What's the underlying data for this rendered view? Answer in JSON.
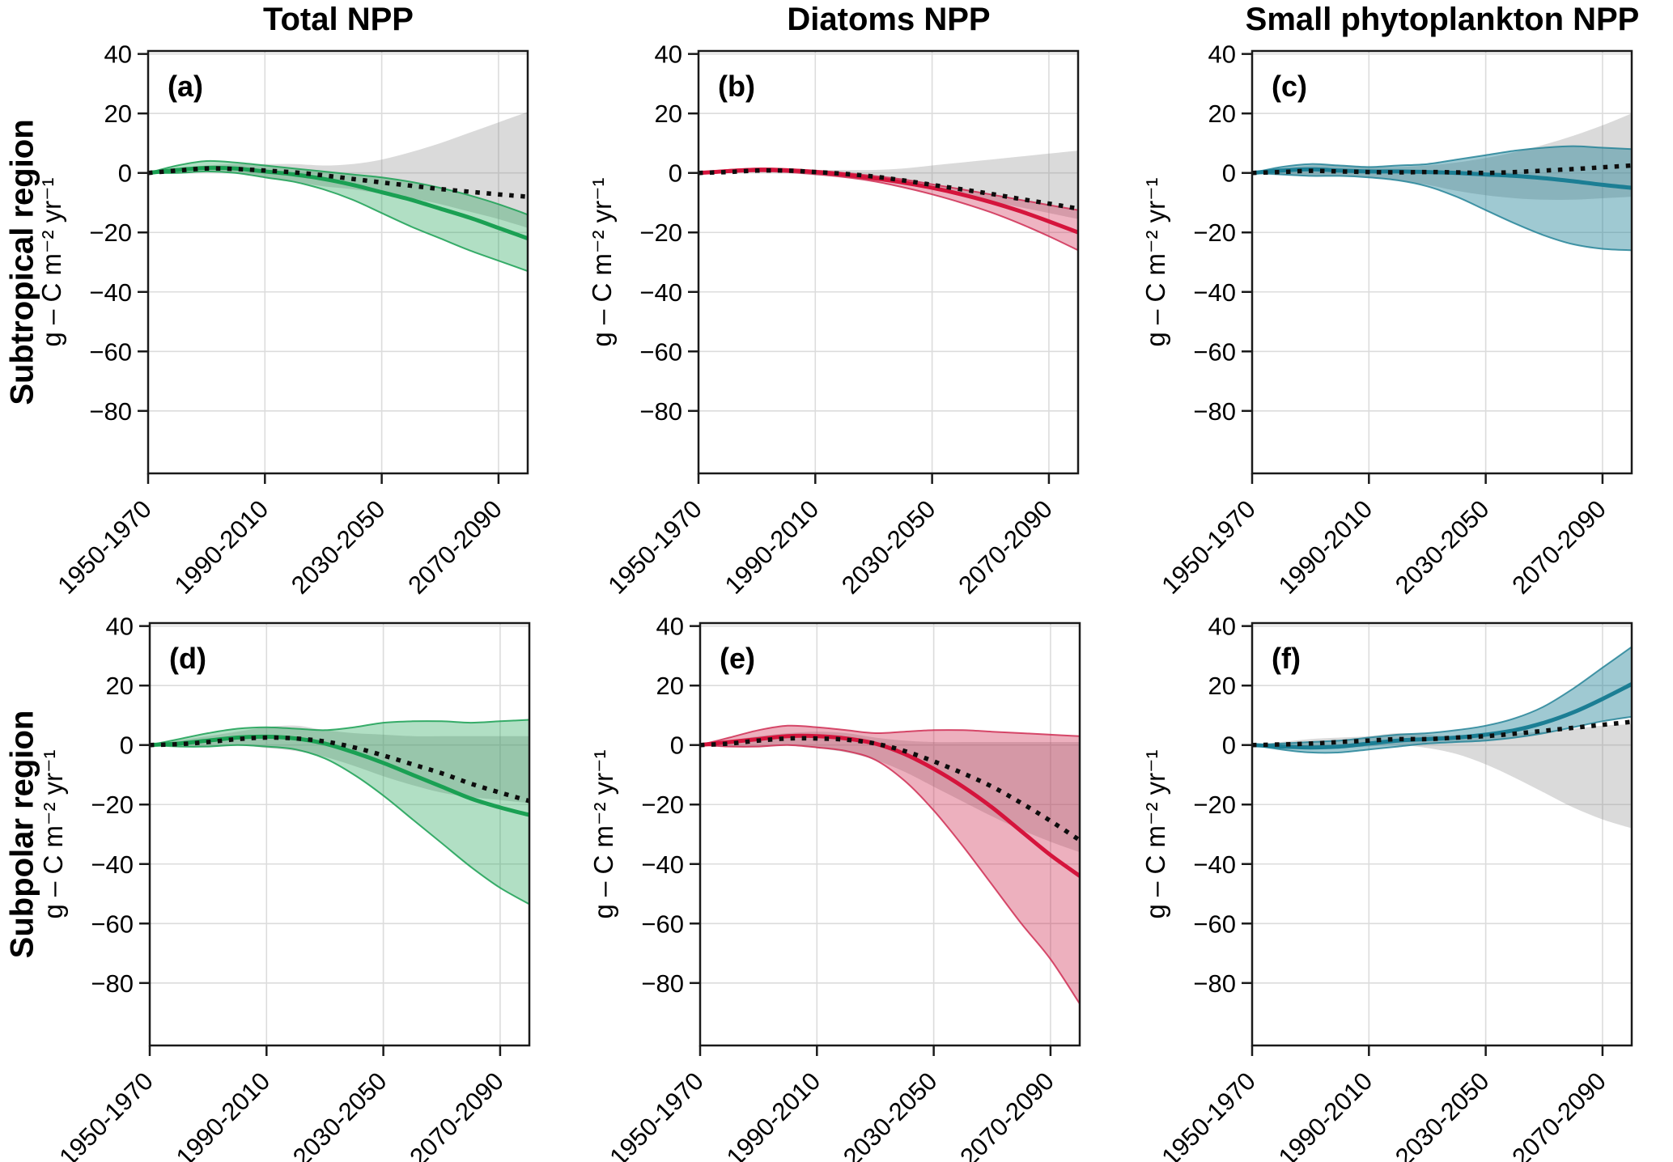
{
  "figure": {
    "column_titles": [
      "Total NPP",
      "Diatoms NPP",
      "Small phytoplankton NPP"
    ],
    "row_labels": [
      "Subtropical region",
      "Subpolar region"
    ]
  },
  "colors": {
    "grid": "#dcdcdc",
    "frame": "#1a1a1a",
    "dotted_line": "#0d0d0d",
    "gray_band_fill": "rgba(140,140,140,0.32)",
    "green": "#1aa053",
    "red": "#d5143c",
    "teal": "#1b7e94"
  },
  "chart_data": {
    "type": "line",
    "x": [
      1960,
      1970,
      1980,
      1990,
      2000,
      2010,
      2020,
      2030,
      2040,
      2050,
      2060,
      2070,
      2080,
      2090
    ],
    "axes": {
      "ylabel": "g – C m⁻² yr⁻¹",
      "ytick_values": [
        40,
        20,
        0,
        -20,
        -40,
        -60,
        -80
      ],
      "ytick_labels": [
        "40",
        "20",
        "0",
        "−20",
        "−40",
        "−60",
        "−80"
      ],
      "xtick_values": [
        1960,
        2000,
        2040,
        2080
      ],
      "xtick_labels": [
        "1950-1970",
        "1990-2010",
        "2030-2050",
        "2070-2090"
      ],
      "ylim": [
        -101,
        41
      ],
      "xlim": [
        1960,
        2090
      ],
      "grid": true
    },
    "panels": [
      {
        "letter": "(a)",
        "region": "Subtropical region",
        "variable": "Total NPP",
        "color": "#1aa053",
        "band_fill": "rgba(26,160,83,0.34)",
        "band_edge": "rgba(26,160,83,0.85)",
        "dotted": [
          0,
          0.8,
          1.5,
          1.3,
          0.8,
          0.2,
          -0.8,
          -2,
          -3.2,
          -4.3,
          -5.4,
          -6.3,
          -7.2,
          -8
        ],
        "solid": [
          0,
          1,
          1.7,
          1.5,
          0.5,
          -0.5,
          -2,
          -4,
          -6.5,
          -9,
          -12,
          -15,
          -18.5,
          -22
        ],
        "gray_band": {
          "upper": [
            0,
            1.5,
            2.5,
            3,
            3,
            3,
            2.5,
            3,
            4.5,
            7,
            10,
            13.5,
            17,
            20.5
          ],
          "lower": [
            0,
            0,
            0.5,
            0,
            -1.5,
            -3,
            -4.5,
            -5.5,
            -7,
            -8.5,
            -10.5,
            -13,
            -15.5,
            -18.5
          ]
        },
        "band": {
          "upper": [
            0,
            2.5,
            4,
            3.5,
            2.5,
            1.5,
            0.5,
            -0.5,
            -1.5,
            -3,
            -5,
            -7.5,
            -10.5,
            -14
          ],
          "lower": [
            0,
            0,
            0.5,
            0,
            -1.5,
            -3,
            -5.5,
            -9,
            -13.5,
            -18,
            -22,
            -26,
            -29.5,
            -33
          ]
        }
      },
      {
        "letter": "(b)",
        "region": "Subtropical region",
        "variable": "Diatoms NPP",
        "color": "#d5143c",
        "band_fill": "rgba(205,35,75,0.34)",
        "band_edge": "rgba(205,35,75,0.8)",
        "dotted": [
          0,
          0.3,
          0.8,
          0.8,
          0.3,
          -0.3,
          -1.2,
          -2.5,
          -4,
          -5.5,
          -7,
          -8.7,
          -10.3,
          -12
        ],
        "solid": [
          0,
          0.6,
          1.1,
          0.9,
          0.3,
          -0.6,
          -1.8,
          -3.2,
          -5,
          -7.2,
          -9.8,
          -12.8,
          -16.3,
          -20
        ],
        "gray_band": {
          "upper": [
            0,
            0.5,
            1,
            1.2,
            1,
            1,
            1,
            1.5,
            2.5,
            3.5,
            4.5,
            5.5,
            6.5,
            7.5
          ],
          "lower": [
            0,
            0,
            0.2,
            0,
            -0.8,
            -1.5,
            -2.5,
            -4,
            -5.5,
            -7.5,
            -9.5,
            -11.5,
            -13.5,
            -15.5
          ]
        },
        "band": {
          "upper": [
            0,
            1,
            1.5,
            1.3,
            0.8,
            0,
            -1,
            -2.2,
            -3.8,
            -5.5,
            -7.2,
            -9,
            -10.8,
            -12.5
          ],
          "lower": [
            0,
            0.2,
            0.5,
            0.3,
            -0.4,
            -1.4,
            -2.8,
            -4.8,
            -7.2,
            -10,
            -13.2,
            -17,
            -21.3,
            -26
          ]
        }
      },
      {
        "letter": "(c)",
        "region": "Subtropical region",
        "variable": "Small phytoplankton NPP",
        "color": "#1b7e94",
        "band_fill": "rgba(27,126,148,0.42)",
        "band_edge": "rgba(27,126,148,0.8)",
        "dotted": [
          0,
          0.3,
          0.7,
          0.5,
          0.3,
          0.2,
          0.3,
          0.2,
          0,
          0.3,
          0.8,
          1.3,
          1.9,
          2.5
        ],
        "solid": [
          0,
          0.8,
          1.2,
          0.8,
          0.5,
          0.5,
          0.3,
          0,
          -0.5,
          -1,
          -1.8,
          -2.8,
          -4,
          -5
        ],
        "gray_band": {
          "upper": [
            0,
            1.5,
            2.5,
            2.5,
            2,
            2,
            2.5,
            3.5,
            5,
            7,
            9.5,
            12.5,
            16,
            20
          ],
          "lower": [
            0,
            -0.5,
            -1,
            -1,
            -1.5,
            -2.5,
            -4,
            -6,
            -7.5,
            -8.5,
            -9,
            -9,
            -8.5,
            -8
          ]
        },
        "band": {
          "upper": [
            0,
            2,
            3,
            2.5,
            2,
            2.5,
            3,
            4.5,
            6,
            7.5,
            8.5,
            9,
            8.5,
            8
          ],
          "lower": [
            0,
            -0.5,
            -1,
            -1,
            -1.5,
            -2.5,
            -4.5,
            -8,
            -12.5,
            -17,
            -21,
            -24,
            -25.5,
            -26
          ]
        }
      },
      {
        "letter": "(d)",
        "region": "Subpolar region",
        "variable": "Total NPP",
        "color": "#1aa053",
        "band_fill": "rgba(26,160,83,0.34)",
        "band_edge": "rgba(26,160,83,0.85)",
        "dotted": [
          0,
          0.3,
          1,
          2,
          2.5,
          2.2,
          1.2,
          -0.8,
          -3.5,
          -6.5,
          -9.5,
          -13,
          -16,
          -18.8
        ],
        "solid": [
          0,
          0.5,
          1.5,
          2.5,
          2.8,
          2.2,
          0.5,
          -2.5,
          -6,
          -10,
          -14,
          -18,
          -21,
          -23.5
        ],
        "gray_band": {
          "upper": [
            0,
            1.5,
            3,
            4.5,
            6,
            6.5,
            5,
            4,
            3.5,
            3,
            3,
            3,
            3,
            3
          ],
          "lower": [
            0,
            -0.5,
            -0.5,
            0,
            -1,
            -2,
            -4,
            -7,
            -10.5,
            -13.5,
            -16,
            -17.5,
            -18.5,
            -19.5
          ]
        },
        "band": {
          "upper": [
            0,
            2,
            4,
            5.5,
            6,
            5.5,
            5,
            6,
            7.5,
            8,
            8,
            7.5,
            8,
            8.5
          ],
          "lower": [
            0,
            -0.5,
            -0.5,
            0,
            -0.5,
            -1.5,
            -4.5,
            -10,
            -17,
            -25,
            -33,
            -41,
            -48,
            -53.5
          ]
        }
      },
      {
        "letter": "(e)",
        "region": "Subpolar region",
        "variable": "Diatoms NPP",
        "color": "#d5143c",
        "band_fill": "rgba(205,35,75,0.36)",
        "band_edge": "rgba(205,35,75,0.8)",
        "dotted": [
          0,
          0.5,
          1.5,
          2.2,
          2.2,
          1.8,
          0.5,
          -2,
          -5.5,
          -9.5,
          -14,
          -19.5,
          -25.5,
          -32
        ],
        "solid": [
          0,
          1,
          2,
          3,
          3,
          2.2,
          0.5,
          -3,
          -8,
          -14,
          -21,
          -29,
          -37,
          -44
        ],
        "gray_band": {
          "upper": [
            0,
            1.5,
            3,
            4,
            4.5,
            4,
            2.5,
            1.5,
            1,
            1,
            1,
            1,
            1,
            1
          ],
          "lower": [
            0,
            -0.5,
            -0.5,
            0,
            -1,
            -2.5,
            -5,
            -9,
            -14,
            -19,
            -24,
            -28.5,
            -32.5,
            -36
          ]
        },
        "band": {
          "upper": [
            0,
            2.5,
            5,
            6.5,
            6,
            5,
            4,
            4.5,
            5,
            5,
            4.5,
            4,
            3.5,
            3
          ],
          "lower": [
            0,
            -0.5,
            -0.5,
            0,
            -0.8,
            -2,
            -5,
            -12,
            -22,
            -34,
            -47,
            -60,
            -72,
            -87
          ]
        }
      },
      {
        "letter": "(f)",
        "region": "Subpolar region",
        "variable": "Small phytoplankton NPP",
        "color": "#1b7e94",
        "band_fill": "rgba(27,126,148,0.42)",
        "band_edge": "rgba(27,126,148,0.8)",
        "dotted": [
          0,
          0.2,
          0.5,
          1,
          1.5,
          2,
          2,
          2.5,
          3,
          3.8,
          4.8,
          5.8,
          6.8,
          7.8
        ],
        "solid": [
          0,
          -0.5,
          -0.8,
          -0.5,
          0.5,
          1.5,
          2,
          2.5,
          3.5,
          5,
          7.5,
          11,
          15.5,
          20.5
        ],
        "gray_band": {
          "upper": [
            0,
            1,
            2,
            2.5,
            3,
            4,
            3.5,
            3,
            3.5,
            4,
            4.5,
            5.5,
            6.5,
            7
          ],
          "lower": [
            0,
            -0.5,
            -1,
            -1,
            -0.5,
            0,
            -1,
            -3,
            -6.5,
            -11,
            -16,
            -21,
            -25,
            -28
          ]
        },
        "band": {
          "upper": [
            0,
            0.5,
            1,
            1.5,
            2.5,
            3.5,
            4,
            5,
            6.5,
            9,
            13,
            19,
            26,
            33
          ],
          "lower": [
            0,
            -1.5,
            -2.5,
            -2.5,
            -1.5,
            -0.5,
            0.5,
            1,
            1.5,
            2.5,
            4,
            6,
            8,
            9.5
          ]
        }
      }
    ]
  }
}
